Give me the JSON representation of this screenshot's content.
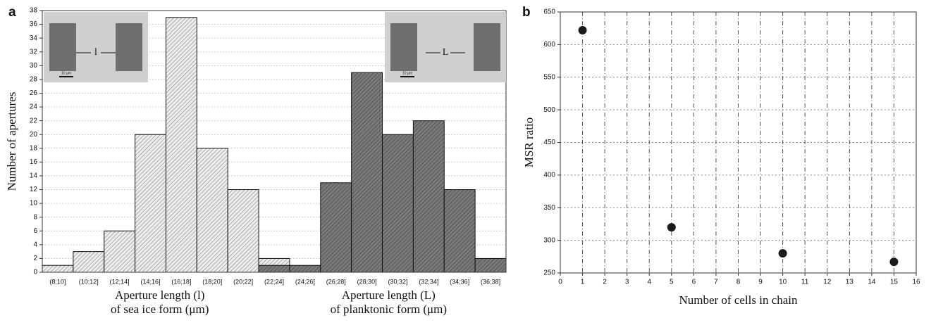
{
  "chart_data": [
    {
      "type": "bar",
      "panel_label": "a",
      "ylabel": "Number of apertures",
      "xlabels": [
        [
          "Aperture length (l)",
          "of sea ice form (μm)"
        ],
        [
          "Aperture length (L)",
          "of planktonic form (μm)"
        ]
      ],
      "insets": [
        {
          "label": "l",
          "scale_bar": "10 μm"
        },
        {
          "label": "L",
          "scale_bar": "10 μm"
        }
      ],
      "categories": [
        "(8;10]",
        "(10;12]",
        "(12;14]",
        "(14;16]",
        "(16;18]",
        "(18;20]",
        "(20;22]",
        "(22;24]",
        "(24;26]",
        "(26;28]",
        "(28;30]",
        "(30;32]",
        "(32;34]",
        "(34;36]",
        "(36;38]"
      ],
      "series": [
        {
          "color": "#ececec",
          "values": [
            1,
            3,
            6,
            20,
            37,
            18,
            12,
            2,
            null,
            null,
            null,
            null,
            null,
            null,
            null
          ]
        },
        {
          "color": "#7a7a7a",
          "values": [
            null,
            null,
            null,
            null,
            null,
            null,
            null,
            1,
            1,
            13,
            29,
            20,
            22,
            12,
            2
          ]
        }
      ],
      "ylim": [
        0,
        38
      ],
      "yticks": [
        0,
        2,
        4,
        6,
        8,
        10,
        12,
        14,
        16,
        18,
        20,
        22,
        24,
        26,
        28,
        30,
        32,
        34,
        36,
        38
      ],
      "grid": true
    },
    {
      "type": "scatter",
      "panel_label": "b",
      "ylabel": "MSR ratio",
      "xlabel": "Number of cells in chain",
      "x": [
        1,
        5,
        10,
        15
      ],
      "values": [
        622,
        320,
        280,
        267
      ],
      "color": "#1a1a1a",
      "xlim": [
        0,
        16
      ],
      "xticks": [
        0,
        1,
        2,
        3,
        4,
        5,
        6,
        7,
        8,
        9,
        10,
        11,
        12,
        13,
        14,
        15,
        16
      ],
      "ylim": [
        250,
        650
      ],
      "yticks": [
        250,
        300,
        350,
        400,
        450,
        500,
        550,
        600,
        650
      ],
      "grid": true
    }
  ]
}
